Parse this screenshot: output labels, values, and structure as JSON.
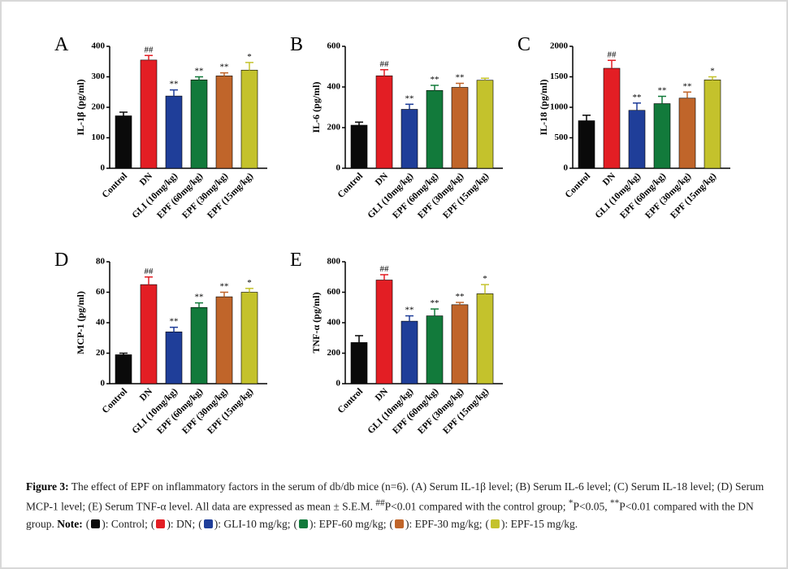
{
  "chart_data": [
    {
      "type": "bar",
      "panel": "A",
      "y_label": "IL-1β (pg/ml)",
      "categories": [
        "Control",
        "DN",
        "GLI (10mg/kg)",
        "EPF (60mg/kg)",
        "EPF (30mg/kg)",
        "EPF (15mg/kg)"
      ],
      "values": [
        172,
        355,
        237,
        290,
        303,
        322
      ],
      "errors": [
        12,
        15,
        20,
        10,
        10,
        25
      ],
      "annotations": [
        null,
        "##",
        "**",
        "**",
        "**",
        "*"
      ],
      "colors": [
        "#0a0a0a",
        "#e31e24",
        "#1f3e99",
        "#127a3b",
        "#c0652a",
        "#c4c22c"
      ],
      "ylim": [
        0,
        400
      ],
      "yticks": [
        0,
        100,
        200,
        300,
        400
      ]
    },
    {
      "type": "bar",
      "panel": "B",
      "y_label": "IL-6 (pg/ml)",
      "categories": [
        "Control",
        "DN",
        "GLI (10mg/kg)",
        "EPF (60mg/kg)",
        "EPF (30mg/kg)",
        "EPF (15mg/kg)"
      ],
      "values": [
        212,
        455,
        290,
        383,
        398,
        433
      ],
      "errors": [
        15,
        30,
        25,
        25,
        20,
        10
      ],
      "annotations": [
        null,
        "##",
        "**",
        "**",
        "**",
        null
      ],
      "colors": [
        "#0a0a0a",
        "#e31e24",
        "#1f3e99",
        "#127a3b",
        "#c0652a",
        "#c4c22c"
      ],
      "ylim": [
        0,
        600
      ],
      "yticks": [
        0,
        200,
        400,
        600
      ]
    },
    {
      "type": "bar",
      "panel": "C",
      "y_label": "IL-18 (pg/ml)",
      "categories": [
        "Control",
        "DN",
        "GLI (10mg/kg)",
        "EPF (60mg/kg)",
        "EPF (30mg/kg)",
        "EPF (15mg/kg)"
      ],
      "values": [
        780,
        1640,
        950,
        1060,
        1150,
        1450
      ],
      "errors": [
        90,
        130,
        120,
        120,
        100,
        50
      ],
      "annotations": [
        null,
        "##",
        "**",
        "**",
        "**",
        "*"
      ],
      "colors": [
        "#0a0a0a",
        "#e31e24",
        "#1f3e99",
        "#127a3b",
        "#c0652a",
        "#c4c22c"
      ],
      "ylim": [
        0,
        2000
      ],
      "yticks": [
        0,
        500,
        1000,
        1500,
        2000
      ]
    },
    {
      "type": "bar",
      "panel": "D",
      "y_label": "MCP-1 (pg/ml)",
      "categories": [
        "Control",
        "DN",
        "GLI (10mg/kg)",
        "EPF (60mg/kg)",
        "EPF (30mg/kg)",
        "EPF (15mg/kg)"
      ],
      "values": [
        19,
        65,
        34,
        50,
        57,
        60
      ],
      "errors": [
        1,
        5,
        3,
        3,
        3,
        2.5
      ],
      "annotations": [
        null,
        "##",
        "**",
        "**",
        "**",
        "*"
      ],
      "colors": [
        "#0a0a0a",
        "#e31e24",
        "#1f3e99",
        "#127a3b",
        "#c0652a",
        "#c4c22c"
      ],
      "ylim": [
        0,
        80
      ],
      "yticks": [
        0,
        20,
        40,
        60,
        80
      ]
    },
    {
      "type": "bar",
      "panel": "E",
      "y_label": "TNF-α (pg/ml)",
      "categories": [
        "Control",
        "DN",
        "GLI (10mg/kg)",
        "EPF (60mg/kg)",
        "EPF (30mg/kg)",
        "EPF (15mg/kg)"
      ],
      "values": [
        270,
        680,
        410,
        445,
        518,
        590
      ],
      "errors": [
        45,
        35,
        35,
        45,
        15,
        60
      ],
      "annotations": [
        null,
        "##",
        "**",
        "**",
        "**",
        "*"
      ],
      "colors": [
        "#0a0a0a",
        "#e31e24",
        "#1f3e99",
        "#127a3b",
        "#c0652a",
        "#c4c22c"
      ],
      "ylim": [
        0,
        800
      ],
      "yticks": [
        0,
        200,
        400,
        600,
        800
      ]
    }
  ],
  "caption": {
    "label": "Figure 3:",
    "segments": [
      {
        "text": " The effect of EPF on inflammatory factors in the serum of db/db mice (n=6). (A) Serum IL-1β level; (B) Serum IL-6 level; (C) Serum IL-18 level; (D) Serum MCP-1 level; (E) Serum TNF-α level. All data are expressed as mean ± S.E.M. ",
        "sup": false
      },
      {
        "text": "##",
        "sup": true
      },
      {
        "text": "P<0.01 compared with the control group; ",
        "sup": false
      },
      {
        "text": "*",
        "sup": true
      },
      {
        "text": "P<0.05, ",
        "sup": false
      },
      {
        "text": "**",
        "sup": true
      },
      {
        "text": "P<0.01 compared with the DN group. ",
        "sup": false
      }
    ],
    "note_label": "Note:",
    "note_items": [
      {
        "before": "(",
        "color": "#0a0a0a",
        "after": "): Control;"
      },
      {
        "before": "(",
        "color": "#e31e24",
        "after": "): DN;"
      },
      {
        "before": "(",
        "color": "#1f3e99",
        "after": "): GLI-10 mg/kg;"
      },
      {
        "before": "(",
        "color": "#127a3b",
        "after": "): EPF-60 mg/kg;"
      },
      {
        "before": "(",
        "color": "#c0652a",
        "after": "): EPF-30 mg/kg;"
      },
      {
        "before": "(",
        "color": "#c4c22c",
        "after": "): EPF-15 mg/kg."
      }
    ]
  }
}
